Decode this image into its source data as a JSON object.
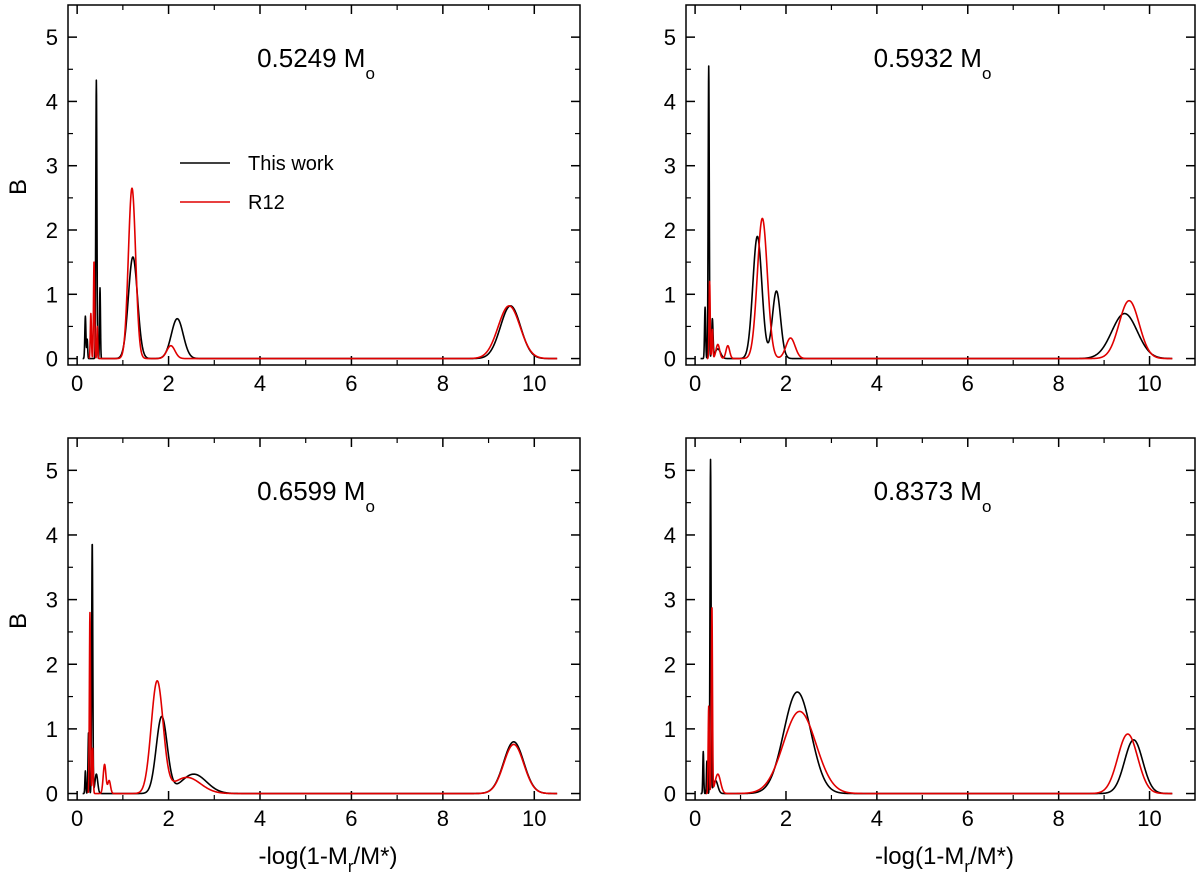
{
  "colors": {
    "this_work": "#000000",
    "r12": "#e00000"
  },
  "legend": {
    "this_work": "This work",
    "r12": "R12"
  },
  "chart_data": [
    {
      "type": "line",
      "title": "0.5249 M",
      "title_sub": "o",
      "ylabel": "B",
      "xlabel": "",
      "xlabel_sub": "",
      "xlim": [
        -0.2,
        11
      ],
      "ylim": [
        -0.1,
        5.5
      ],
      "xticks": [
        0,
        2,
        4,
        6,
        8,
        10
      ],
      "yticks": [
        0,
        1,
        2,
        3,
        4,
        5
      ],
      "xtick_labels": [
        "0",
        "2",
        "4",
        "6",
        "8",
        "10"
      ],
      "ytick_labels": [
        "0",
        "1",
        "2",
        "3",
        "4",
        "5"
      ],
      "legend_location": "upper-left",
      "series": [
        {
          "name": "This work",
          "color_key": "this_work",
          "baseline": [
            0.12,
            10.5
          ],
          "spikes": [
            [
              0.18,
              0.66,
              0.012
            ],
            [
              0.22,
              0.3,
              0.01
            ],
            [
              0.42,
              4.33,
              0.012
            ],
            [
              0.5,
              1.1,
              0.01
            ]
          ],
          "peaks": [
            [
              1.22,
              1.58,
              0.1
            ],
            [
              2.19,
              0.62,
              0.13
            ],
            [
              9.48,
              0.82,
              0.22
            ]
          ]
        },
        {
          "name": "R12",
          "color_key": "r12",
          "baseline": [
            0.26,
            10.5
          ],
          "spikes": [
            [
              0.3,
              0.7,
              0.012
            ],
            [
              0.37,
              1.52,
              0.012
            ],
            [
              0.44,
              0.5,
              0.01
            ]
          ],
          "peaks": [
            [
              1.2,
              2.65,
              0.08
            ],
            [
              2.05,
              0.2,
              0.09
            ],
            [
              9.45,
              0.82,
              0.24
            ]
          ]
        }
      ]
    },
    {
      "type": "line",
      "title": "0.5932 M",
      "title_sub": "o",
      "ylabel": "",
      "xlabel": "",
      "xlabel_sub": "",
      "xlim": [
        -0.2,
        11
      ],
      "ylim": [
        -0.1,
        5.5
      ],
      "xticks": [
        0,
        2,
        4,
        6,
        8,
        10
      ],
      "yticks": [
        0,
        1,
        2,
        3,
        4,
        5
      ],
      "xtick_labels": [
        "0",
        "2",
        "4",
        "6",
        "8",
        "10"
      ],
      "ytick_labels": [
        "0",
        "1",
        "2",
        "3",
        "4",
        "5"
      ],
      "series": [
        {
          "name": "This work",
          "color_key": "this_work",
          "baseline": [
            0.12,
            10.5
          ],
          "spikes": [
            [
              0.22,
              0.8,
              0.012
            ],
            [
              0.3,
              4.55,
              0.012
            ],
            [
              0.38,
              0.6,
              0.015
            ],
            [
              0.5,
              0.15,
              0.06
            ]
          ],
          "peaks": [
            [
              1.37,
              1.9,
              0.1
            ],
            [
              1.79,
              1.05,
              0.09
            ],
            [
              9.45,
              0.7,
              0.28
            ]
          ]
        },
        {
          "name": "R12",
          "color_key": "r12",
          "baseline": [
            0.26,
            10.5
          ],
          "spikes": [
            [
              0.32,
              1.2,
              0.012
            ],
            [
              0.38,
              0.45,
              0.012
            ],
            [
              0.5,
              0.22,
              0.04
            ],
            [
              0.72,
              0.2,
              0.04
            ]
          ],
          "peaks": [
            [
              1.48,
              2.18,
              0.11
            ],
            [
              2.1,
              0.32,
              0.1
            ],
            [
              9.55,
              0.9,
              0.22
            ]
          ]
        }
      ]
    },
    {
      "type": "line",
      "title": "0.6599 M",
      "title_sub": "o",
      "ylabel": "B",
      "xlabel": "-log(1-M",
      "xlabel_sub": "r",
      "xlabel_tail": "/M*)",
      "xlim": [
        -0.2,
        11
      ],
      "ylim": [
        -0.1,
        5.5
      ],
      "xticks": [
        0,
        2,
        4,
        6,
        8,
        10
      ],
      "yticks": [
        0,
        1,
        2,
        3,
        4,
        5
      ],
      "xtick_labels": [
        "0",
        "2",
        "4",
        "6",
        "8",
        "10"
      ],
      "ytick_labels": [
        "0",
        "1",
        "2",
        "3",
        "4",
        "5"
      ],
      "series": [
        {
          "name": "This work",
          "color_key": "this_work",
          "baseline": [
            0.12,
            10.5
          ],
          "spikes": [
            [
              0.18,
              0.35,
              0.01
            ],
            [
              0.25,
              0.95,
              0.012
            ],
            [
              0.33,
              3.9,
              0.012
            ],
            [
              0.42,
              0.3,
              0.03
            ]
          ],
          "peaks": [
            [
              1.85,
              1.18,
              0.12
            ],
            [
              2.55,
              0.3,
              0.28
            ]
          ],
          "peaks_extra": [
            [
              9.55,
              0.8,
              0.22
            ]
          ]
        },
        {
          "name": "R12",
          "color_key": "r12",
          "baseline": [
            0.24,
            10.5
          ],
          "spikes": [
            [
              0.28,
              2.8,
              0.012
            ],
            [
              0.34,
              0.7,
              0.012
            ],
            [
              0.6,
              0.45,
              0.03
            ],
            [
              0.7,
              0.2,
              0.03
            ]
          ],
          "peaks": [
            [
              1.75,
              1.72,
              0.13
            ],
            [
              2.4,
              0.25,
              0.3
            ]
          ],
          "peaks_extra": [
            [
              9.55,
              0.76,
              0.22
            ]
          ]
        }
      ]
    },
    {
      "type": "line",
      "title": "0.8373 M",
      "title_sub": "o",
      "ylabel": "",
      "xlabel": "-log(1-M",
      "xlabel_sub": "r",
      "xlabel_tail": "/M*)",
      "xlim": [
        -0.2,
        11
      ],
      "ylim": [
        -0.1,
        5.5
      ],
      "xticks": [
        0,
        2,
        4,
        6,
        8,
        10
      ],
      "yticks": [
        0,
        1,
        2,
        3,
        4,
        5
      ],
      "xtick_labels": [
        "0",
        "2",
        "4",
        "6",
        "8",
        "10"
      ],
      "ytick_labels": [
        "0",
        "1",
        "2",
        "3",
        "4",
        "5"
      ],
      "series": [
        {
          "name": "This work",
          "color_key": "this_work",
          "baseline": [
            0.12,
            10.5
          ],
          "spikes": [
            [
              0.18,
              0.65,
              0.01
            ],
            [
              0.26,
              0.5,
              0.01
            ],
            [
              0.34,
              5.15,
              0.012
            ],
            [
              0.45,
              0.2,
              0.05
            ]
          ],
          "peaks": [
            [
              2.25,
              1.57,
              0.3
            ],
            [
              9.65,
              0.83,
              0.2
            ]
          ]
        },
        {
          "name": "R12",
          "color_key": "r12",
          "baseline": [
            0.24,
            10.5
          ],
          "spikes": [
            [
              0.3,
              1.35,
              0.012
            ],
            [
              0.37,
              2.88,
              0.012
            ],
            [
              0.5,
              0.3,
              0.06
            ]
          ],
          "peaks": [
            [
              2.3,
              1.27,
              0.36
            ],
            [
              9.52,
              0.92,
              0.22
            ]
          ]
        }
      ]
    }
  ]
}
